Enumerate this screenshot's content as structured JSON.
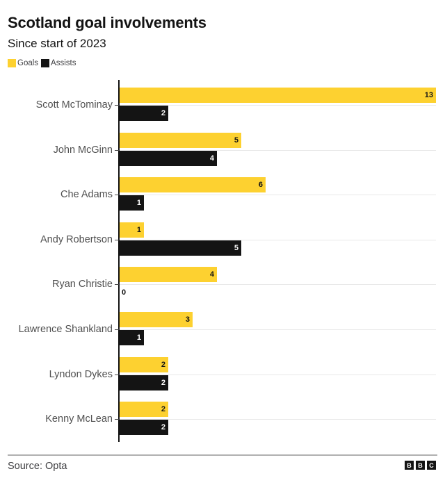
{
  "header": {
    "title": "Scotland goal involvements",
    "subtitle": "Since start of 2023"
  },
  "legend": [
    {
      "label": "Goals",
      "color": "#fdd130"
    },
    {
      "label": "Assists",
      "color": "#141414"
    }
  ],
  "footer": {
    "source": "Source: Opta",
    "logo_letters": [
      "B",
      "B",
      "C"
    ]
  },
  "colors": {
    "goals": "#fdd130",
    "assists": "#141414"
  },
  "chart_data": {
    "type": "bar",
    "orientation": "horizontal",
    "title": "Scotland goal involvements",
    "subtitle": "Since start of 2023",
    "categories": [
      "Scott McTominay",
      "John McGinn",
      "Che Adams",
      "Andy Robertson",
      "Ryan Christie",
      "Lawrence Shankland",
      "Lyndon Dykes",
      "Kenny McLean"
    ],
    "series": [
      {
        "name": "Goals",
        "color": "#fdd130",
        "values": [
          13,
          5,
          6,
          1,
          4,
          3,
          2,
          2
        ]
      },
      {
        "name": "Assists",
        "color": "#141414",
        "values": [
          2,
          4,
          1,
          5,
          0,
          1,
          2,
          2
        ]
      }
    ],
    "xlabel": "",
    "ylabel": "",
    "xlim": [
      0,
      13
    ],
    "grid": true,
    "legend_position": "top-left",
    "data_labels": true,
    "source": "Source: Opta"
  }
}
